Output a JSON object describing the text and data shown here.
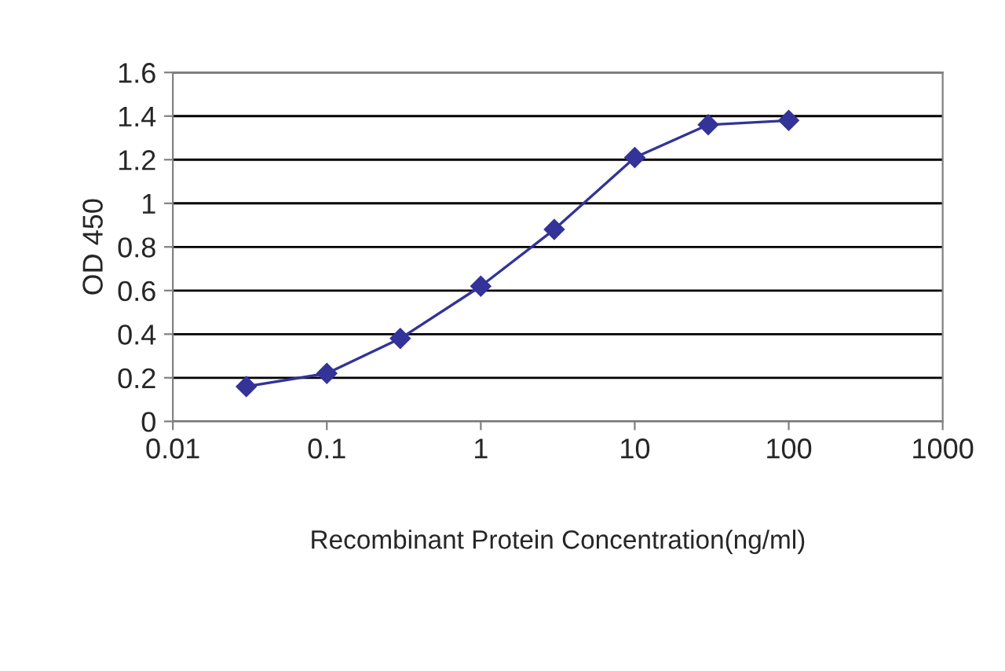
{
  "chart_data": {
    "type": "line",
    "xlabel": "Recombinant Protein Concentration(ng/ml)",
    "ylabel": "OD 450",
    "x": [
      0.03,
      0.1,
      0.3,
      1,
      3,
      10,
      30,
      100
    ],
    "series": [
      {
        "color": "#333399",
        "values": [
          0.16,
          0.22,
          0.38,
          0.62,
          0.88,
          1.21,
          1.36,
          1.38
        ]
      }
    ],
    "log": "x",
    "xlim": [
      0.01,
      1000
    ],
    "xticks": [
      0.01,
      0.1,
      1,
      10,
      100,
      1000
    ],
    "ylim": [
      0,
      1.6
    ],
    "yticks": [
      0,
      0.2,
      0.4,
      0.6,
      0.8,
      1,
      1.2,
      1.4,
      1.6
    ],
    "grid": "y",
    "marker": "diamond",
    "line_style": "solid"
  }
}
